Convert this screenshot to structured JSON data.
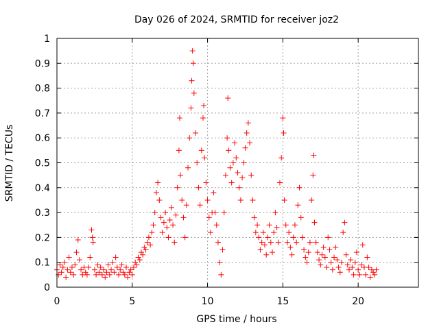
{
  "chart_data": {
    "type": "scatter",
    "title": "Day 026 of 2024, SRMTID for receiver joz2",
    "xlabel": "GPS time / hours",
    "ylabel": "SRMTID / TECUs",
    "xlim": [
      0,
      24
    ],
    "ylim": [
      0,
      1
    ],
    "xticks": [
      0,
      5,
      10,
      15,
      20
    ],
    "yticks": [
      0,
      0.1,
      0.2,
      0.3,
      0.4,
      0.5,
      0.6,
      0.7,
      0.8,
      0.9,
      1
    ],
    "xtick_labels": [
      "0",
      "5",
      "10",
      "15",
      "20"
    ],
    "ytick_labels": [
      "0",
      "0.1",
      "0.2",
      "0.3",
      "0.4",
      "0.5",
      "0.6",
      "0.7",
      "0.8",
      "0.9",
      "1"
    ],
    "grid": true,
    "marker": "+",
    "series_color": "#ff0000",
    "series": [
      {
        "name": "SRMTID",
        "points": [
          [
            0.0,
            0.07
          ],
          [
            0.1,
            0.05
          ],
          [
            0.2,
            0.09
          ],
          [
            0.3,
            0.06
          ],
          [
            0.4,
            0.08
          ],
          [
            0.5,
            0.1
          ],
          [
            0.6,
            0.04
          ],
          [
            0.7,
            0.07
          ],
          [
            0.8,
            0.12
          ],
          [
            0.9,
            0.06
          ],
          [
            1.0,
            0.08
          ],
          [
            1.1,
            0.05
          ],
          [
            1.2,
            0.09
          ],
          [
            1.3,
            0.14
          ],
          [
            1.4,
            0.19
          ],
          [
            1.5,
            0.11
          ],
          [
            1.6,
            0.07
          ],
          [
            1.7,
            0.05
          ],
          [
            1.8,
            0.08
          ],
          [
            1.9,
            0.06
          ],
          [
            2.0,
            0.05
          ],
          [
            2.1,
            0.08
          ],
          [
            2.2,
            0.12
          ],
          [
            2.3,
            0.23
          ],
          [
            2.35,
            0.2
          ],
          [
            2.4,
            0.18
          ],
          [
            2.5,
            0.07
          ],
          [
            2.6,
            0.05
          ],
          [
            2.7,
            0.09
          ],
          [
            2.8,
            0.06
          ],
          [
            2.9,
            0.08
          ],
          [
            3.0,
            0.05
          ],
          [
            3.1,
            0.07
          ],
          [
            3.2,
            0.04
          ],
          [
            3.3,
            0.06
          ],
          [
            3.4,
            0.09
          ],
          [
            3.5,
            0.05
          ],
          [
            3.6,
            0.07
          ],
          [
            3.7,
            0.1
          ],
          [
            3.8,
            0.06
          ],
          [
            3.9,
            0.12
          ],
          [
            4.0,
            0.08
          ],
          [
            4.1,
            0.05
          ],
          [
            4.2,
            0.07
          ],
          [
            4.3,
            0.09
          ],
          [
            4.4,
            0.06
          ],
          [
            4.5,
            0.05
          ],
          [
            4.6,
            0.08
          ],
          [
            4.7,
            0.04
          ],
          [
            4.8,
            0.06
          ],
          [
            4.9,
            0.07
          ],
          [
            5.0,
            0.05
          ],
          [
            5.1,
            0.08
          ],
          [
            5.2,
            0.1
          ],
          [
            5.3,
            0.09
          ],
          [
            5.4,
            0.12
          ],
          [
            5.5,
            0.11
          ],
          [
            5.6,
            0.14
          ],
          [
            5.7,
            0.13
          ],
          [
            5.8,
            0.16
          ],
          [
            5.9,
            0.15
          ],
          [
            6.0,
            0.18
          ],
          [
            6.1,
            0.2
          ],
          [
            6.2,
            0.17
          ],
          [
            6.3,
            0.22
          ],
          [
            6.4,
            0.25
          ],
          [
            6.5,
            0.3
          ],
          [
            6.6,
            0.38
          ],
          [
            6.7,
            0.42
          ],
          [
            6.8,
            0.35
          ],
          [
            6.9,
            0.28
          ],
          [
            7.0,
            0.22
          ],
          [
            7.1,
            0.26
          ],
          [
            7.2,
            0.3
          ],
          [
            7.3,
            0.24
          ],
          [
            7.4,
            0.2
          ],
          [
            7.5,
            0.27
          ],
          [
            7.6,
            0.32
          ],
          [
            7.7,
            0.25
          ],
          [
            7.8,
            0.18
          ],
          [
            7.9,
            0.29
          ],
          [
            8.0,
            0.4
          ],
          [
            8.1,
            0.55
          ],
          [
            8.15,
            0.68
          ],
          [
            8.2,
            0.45
          ],
          [
            8.3,
            0.35
          ],
          [
            8.4,
            0.28
          ],
          [
            8.5,
            0.2
          ],
          [
            8.6,
            0.33
          ],
          [
            8.7,
            0.48
          ],
          [
            8.8,
            0.6
          ],
          [
            8.9,
            0.72
          ],
          [
            8.95,
            0.83
          ],
          [
            9.0,
            0.95
          ],
          [
            9.05,
            0.9
          ],
          [
            9.1,
            0.78
          ],
          [
            9.2,
            0.62
          ],
          [
            9.3,
            0.5
          ],
          [
            9.4,
            0.4
          ],
          [
            9.5,
            0.33
          ],
          [
            9.6,
            0.55
          ],
          [
            9.7,
            0.68
          ],
          [
            9.75,
            0.73
          ],
          [
            9.8,
            0.52
          ],
          [
            9.9,
            0.42
          ],
          [
            10.0,
            0.35
          ],
          [
            10.1,
            0.28
          ],
          [
            10.2,
            0.22
          ],
          [
            10.3,
            0.3
          ],
          [
            10.4,
            0.38
          ],
          [
            10.5,
            0.3
          ],
          [
            10.6,
            0.25
          ],
          [
            10.7,
            0.18
          ],
          [
            10.8,
            0.1
          ],
          [
            10.9,
            0.05
          ],
          [
            11.0,
            0.15
          ],
          [
            11.1,
            0.3
          ],
          [
            11.2,
            0.45
          ],
          [
            11.3,
            0.6
          ],
          [
            11.35,
            0.76
          ],
          [
            11.4,
            0.55
          ],
          [
            11.5,
            0.48
          ],
          [
            11.6,
            0.42
          ],
          [
            11.7,
            0.5
          ],
          [
            11.8,
            0.58
          ],
          [
            11.9,
            0.52
          ],
          [
            12.0,
            0.46
          ],
          [
            12.1,
            0.4
          ],
          [
            12.2,
            0.35
          ],
          [
            12.3,
            0.44
          ],
          [
            12.4,
            0.5
          ],
          [
            12.5,
            0.56
          ],
          [
            12.6,
            0.62
          ],
          [
            12.7,
            0.66
          ],
          [
            12.8,
            0.58
          ],
          [
            12.9,
            0.45
          ],
          [
            13.0,
            0.35
          ],
          [
            13.1,
            0.28
          ],
          [
            13.2,
            0.22
          ],
          [
            13.3,
            0.25
          ],
          [
            13.4,
            0.2
          ],
          [
            13.5,
            0.15
          ],
          [
            13.6,
            0.18
          ],
          [
            13.7,
            0.22
          ],
          [
            13.8,
            0.17
          ],
          [
            13.9,
            0.13
          ],
          [
            14.0,
            0.2
          ],
          [
            14.1,
            0.25
          ],
          [
            14.2,
            0.18
          ],
          [
            14.3,
            0.14
          ],
          [
            14.4,
            0.22
          ],
          [
            14.5,
            0.3
          ],
          [
            14.6,
            0.24
          ],
          [
            14.7,
            0.18
          ],
          [
            14.8,
            0.42
          ],
          [
            14.9,
            0.52
          ],
          [
            15.0,
            0.68
          ],
          [
            15.05,
            0.62
          ],
          [
            15.1,
            0.35
          ],
          [
            15.2,
            0.25
          ],
          [
            15.3,
            0.18
          ],
          [
            15.4,
            0.22
          ],
          [
            15.5,
            0.16
          ],
          [
            15.6,
            0.13
          ],
          [
            15.7,
            0.2
          ],
          [
            15.8,
            0.25
          ],
          [
            15.9,
            0.18
          ],
          [
            16.0,
            0.33
          ],
          [
            16.1,
            0.4
          ],
          [
            16.2,
            0.28
          ],
          [
            16.3,
            0.2
          ],
          [
            16.4,
            0.15
          ],
          [
            16.5,
            0.12
          ],
          [
            16.6,
            0.1
          ],
          [
            16.7,
            0.14
          ],
          [
            16.8,
            0.18
          ],
          [
            16.9,
            0.35
          ],
          [
            17.0,
            0.45
          ],
          [
            17.05,
            0.53
          ],
          [
            17.1,
            0.26
          ],
          [
            17.2,
            0.18
          ],
          [
            17.3,
            0.14
          ],
          [
            17.4,
            0.11
          ],
          [
            17.5,
            0.09
          ],
          [
            17.6,
            0.13
          ],
          [
            17.7,
            0.16
          ],
          [
            17.8,
            0.12
          ],
          [
            17.9,
            0.08
          ],
          [
            18.0,
            0.2
          ],
          [
            18.1,
            0.15
          ],
          [
            18.2,
            0.1
          ],
          [
            18.3,
            0.07
          ],
          [
            18.4,
            0.12
          ],
          [
            18.5,
            0.16
          ],
          [
            18.6,
            0.11
          ],
          [
            18.7,
            0.08
          ],
          [
            18.8,
            0.06
          ],
          [
            18.9,
            0.1
          ],
          [
            19.0,
            0.22
          ],
          [
            19.1,
            0.26
          ],
          [
            19.2,
            0.13
          ],
          [
            19.3,
            0.09
          ],
          [
            19.4,
            0.07
          ],
          [
            19.5,
            0.11
          ],
          [
            19.6,
            0.08
          ],
          [
            19.7,
            0.05
          ],
          [
            19.8,
            0.1
          ],
          [
            19.9,
            0.14
          ],
          [
            20.0,
            0.07
          ],
          [
            20.1,
            0.05
          ],
          [
            20.2,
            0.09
          ],
          [
            20.3,
            0.17
          ],
          [
            20.4,
            0.08
          ],
          [
            20.5,
            0.05
          ],
          [
            20.6,
            0.12
          ],
          [
            20.7,
            0.08
          ],
          [
            20.8,
            0.04
          ],
          [
            20.9,
            0.07
          ],
          [
            21.0,
            0.06
          ],
          [
            21.1,
            0.05
          ],
          [
            21.2,
            0.07
          ]
        ]
      }
    ]
  }
}
